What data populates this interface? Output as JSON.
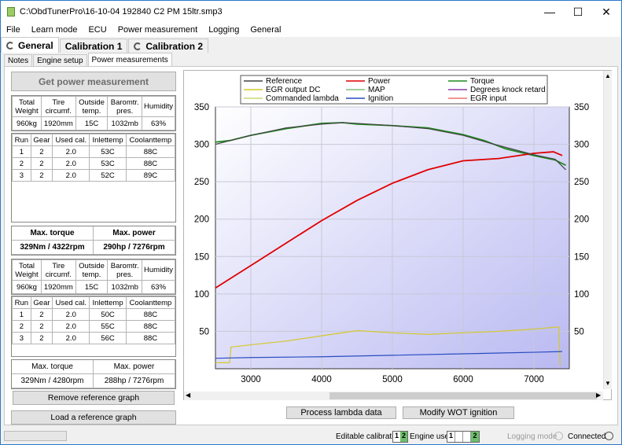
{
  "window": {
    "title": "C:\\ObdTunerPro\\16-10-04 192840 C2 PM 15ltr.smp3"
  },
  "menu": [
    "File",
    "Learn mode",
    "ECU",
    "Power measurement",
    "Logging",
    "General"
  ],
  "cal_tabs": [
    "General",
    "Calibration 1",
    "Calibration 2"
  ],
  "sub_tabs": [
    "Notes",
    "Engine setup",
    "Power measurements"
  ],
  "get_button": "Get power measurement",
  "vehicle_headers": [
    "Total Weight",
    "Tire circumf.",
    "Outside temp.",
    "Baromtr. pres.",
    "Humidity"
  ],
  "run_headers": [
    "Run",
    "Gear",
    "Used cal.",
    "Inlettemp",
    "Coolanttemp"
  ],
  "measurement": {
    "vehicle_values": [
      "960kg",
      "1920mm",
      "15C",
      "1032mb",
      "63%"
    ],
    "runs": [
      [
        "1",
        "2",
        "2.0",
        "53C",
        "88C"
      ],
      [
        "2",
        "2",
        "2.0",
        "53C",
        "88C"
      ],
      [
        "3",
        "2",
        "2.0",
        "52C",
        "89C"
      ]
    ],
    "max_torque_label": "Max. torque",
    "max_power_label": "Max. power",
    "max_torque": "329Nm / 4322rpm",
    "max_power": "290hp / 7276rpm"
  },
  "reference": {
    "vehicle_values": [
      "960kg",
      "1920mm",
      "15C",
      "1032mb",
      "63%"
    ],
    "runs": [
      [
        "1",
        "2",
        "2.0",
        "50C",
        "88C"
      ],
      [
        "2",
        "2",
        "2.0",
        "55C",
        "88C"
      ],
      [
        "3",
        "2",
        "2.0",
        "56C",
        "88C"
      ]
    ],
    "max_torque_label": "Max. torque",
    "max_power_label": "Max. power",
    "max_torque": "329Nm / 4280rpm",
    "max_power": "288hp / 7276rpm"
  },
  "remove_ref_button": "Remove reference graph",
  "load_ref_button": "Load a reference graph",
  "process_button": "Process lambda data",
  "modify_button": "Modify WOT ignition",
  "status": {
    "editable_label": "Editable calibration",
    "editable_values": [
      "1",
      "2"
    ],
    "engine_label": "Engine uses",
    "engine_values": [
      "1",
      "",
      "",
      "2"
    ],
    "logging_label": "Logging mode",
    "connected_label": "Connected"
  },
  "chart_data": {
    "type": "line",
    "x_ticks": [
      "3000",
      "4000",
      "5000",
      "6000",
      "7000"
    ],
    "y_ticks": [
      "50",
      "100",
      "150",
      "200",
      "250",
      "300",
      "350"
    ],
    "xlim": [
      2500,
      7500
    ],
    "ylim": [
      0,
      350
    ],
    "grid": true,
    "legend": [
      {
        "name": "Reference",
        "color": "#444444"
      },
      {
        "name": "Power",
        "color": "#e00000"
      },
      {
        "name": "Torque",
        "color": "#1e8a1e"
      },
      {
        "name": "EGR output DC",
        "color": "#d4c82a"
      },
      {
        "name": "MAP",
        "color": "#7fbf7f"
      },
      {
        "name": "Degrees knock retard",
        "color": "#8a3aa8"
      },
      {
        "name": "Commanded lambda",
        "color": "#c8d870"
      },
      {
        "name": "Ignition",
        "color": "#2a4cc0"
      },
      {
        "name": "EGR input",
        "color": "#f07070"
      }
    ],
    "series": [
      {
        "name": "Torque",
        "x": [
          2500,
          2700,
          3000,
          3500,
          4000,
          4300,
          4500,
          5000,
          5500,
          6000,
          6300,
          6600,
          7000,
          7300,
          7450
        ],
        "y": [
          303,
          305,
          312,
          321,
          328,
          329,
          327,
          325,
          322,
          313,
          305,
          294,
          285,
          279,
          272
        ]
      },
      {
        "name": "Power",
        "x": [
          2500,
          3000,
          3500,
          4000,
          4500,
          5000,
          5500,
          6000,
          6500,
          7000,
          7276,
          7400
        ],
        "y": [
          108,
          138,
          168,
          198,
          225,
          248,
          266,
          278,
          281,
          288,
          290,
          285
        ]
      },
      {
        "name": "Reference",
        "x": [
          2500,
          3000,
          3500,
          4000,
          4300,
          4500,
          5000,
          5500,
          6000,
          6400,
          7000,
          7300,
          7450
        ],
        "y": [
          300,
          312,
          322,
          327,
          329,
          328,
          325,
          321,
          312,
          301,
          286,
          280,
          266
        ]
      },
      {
        "name": "EGR output DC",
        "x": [
          2500,
          2700,
          2720,
          3000,
          3500,
          4000,
          4500,
          5000,
          5500,
          6000,
          6500,
          7000,
          7350,
          7370
        ],
        "y": [
          8,
          8,
          29,
          32,
          37,
          44,
          51,
          48,
          46,
          48,
          50,
          53,
          56,
          4
        ]
      },
      {
        "name": "Ignition",
        "x": [
          2500,
          3000,
          4000,
          5000,
          6000,
          7000,
          7400
        ],
        "y": [
          14,
          15,
          16,
          18,
          20,
          22,
          23
        ]
      }
    ]
  }
}
